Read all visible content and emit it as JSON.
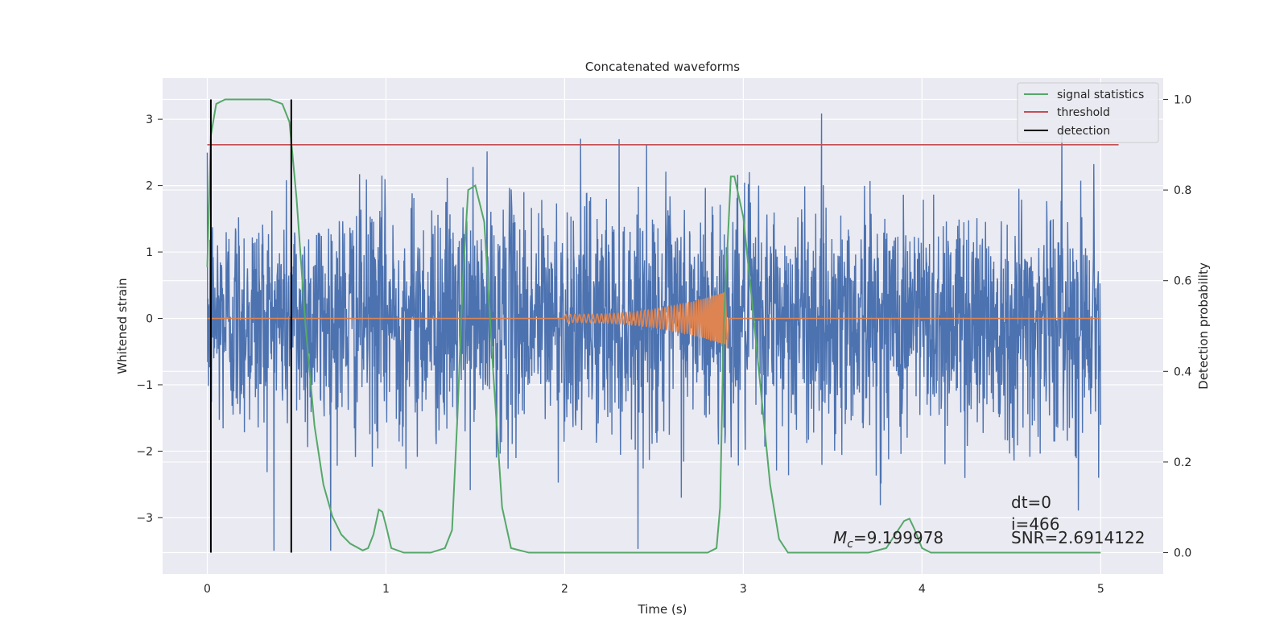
{
  "chart_data": {
    "type": "line",
    "title": "Concatenated waveforms",
    "xlabel": "Time (s)",
    "ylabel": "Whitened strain",
    "y2label": "Detection probability",
    "xlim": [
      -0.25,
      5.35
    ],
    "ylim": [
      -3.85,
      3.62
    ],
    "y2lim": [
      -0.047,
      1.047
    ],
    "xticks": [
      0,
      1,
      2,
      3,
      4,
      5
    ],
    "xtick_labels": [
      "0",
      "1",
      "2",
      "3",
      "4",
      "5"
    ],
    "yticks": [
      -3,
      -2,
      -1,
      0,
      1,
      2,
      3
    ],
    "ytick_labels": [
      "−3",
      "−2",
      "−1",
      "0",
      "1",
      "2",
      "3"
    ],
    "y2ticks": [
      0.0,
      0.2,
      0.4,
      0.6,
      0.8,
      1.0
    ],
    "y2tick_labels": [
      "0.0",
      "0.2",
      "0.4",
      "0.6",
      "0.8",
      "1.0"
    ],
    "grid": true,
    "legend_position": "top-right",
    "legend": [
      "signal statistics",
      "threshold",
      "detection"
    ],
    "series": [
      {
        "name": "whitened noise",
        "axis": "left",
        "color": "#4c72b0",
        "kind": "noise",
        "x_range": [
          0,
          5
        ],
        "typical_amplitude_range": [
          -2.0,
          2.0
        ],
        "peak_max": 3.3,
        "peak_min": -3.5
      },
      {
        "name": "injected waveform",
        "axis": "left",
        "color": "#dd8452",
        "kind": "chirp",
        "x_range": [
          0,
          5
        ],
        "chirp_start": 2.0,
        "chirp_end": 2.9,
        "amplitude_start": 0.06,
        "amplitude_end": 0.4
      },
      {
        "name": "signal statistics",
        "axis": "right",
        "color": "#55a868",
        "points": [
          [
            0.0,
            0.63
          ],
          [
            0.02,
            0.92
          ],
          [
            0.05,
            0.99
          ],
          [
            0.1,
            1.0
          ],
          [
            0.35,
            1.0
          ],
          [
            0.42,
            0.99
          ],
          [
            0.46,
            0.95
          ],
          [
            0.5,
            0.78
          ],
          [
            0.55,
            0.5
          ],
          [
            0.6,
            0.28
          ],
          [
            0.65,
            0.15
          ],
          [
            0.7,
            0.08
          ],
          [
            0.75,
            0.04
          ],
          [
            0.8,
            0.02
          ],
          [
            0.87,
            0.005
          ],
          [
            0.9,
            0.01
          ],
          [
            0.93,
            0.04
          ],
          [
            0.96,
            0.095
          ],
          [
            0.98,
            0.09
          ],
          [
            1.0,
            0.06
          ],
          [
            1.03,
            0.01
          ],
          [
            1.1,
            0.0
          ],
          [
            1.25,
            0.0
          ],
          [
            1.33,
            0.01
          ],
          [
            1.37,
            0.05
          ],
          [
            1.4,
            0.3
          ],
          [
            1.43,
            0.6
          ],
          [
            1.46,
            0.8
          ],
          [
            1.5,
            0.81
          ],
          [
            1.55,
            0.73
          ],
          [
            1.6,
            0.4
          ],
          [
            1.65,
            0.1
          ],
          [
            1.7,
            0.01
          ],
          [
            1.8,
            0.0
          ],
          [
            2.8,
            0.0
          ],
          [
            2.85,
            0.01
          ],
          [
            2.87,
            0.1
          ],
          [
            2.89,
            0.5
          ],
          [
            2.93,
            0.83
          ],
          [
            2.95,
            0.83
          ],
          [
            3.0,
            0.74
          ],
          [
            3.05,
            0.55
          ],
          [
            3.1,
            0.35
          ],
          [
            3.15,
            0.15
          ],
          [
            3.2,
            0.03
          ],
          [
            3.25,
            0.0
          ],
          [
            3.7,
            0.0
          ],
          [
            3.8,
            0.01
          ],
          [
            3.85,
            0.04
          ],
          [
            3.9,
            0.07
          ],
          [
            3.93,
            0.075
          ],
          [
            3.96,
            0.05
          ],
          [
            4.0,
            0.01
          ],
          [
            4.05,
            0.0
          ],
          [
            5.0,
            0.0
          ]
        ]
      },
      {
        "name": "threshold",
        "axis": "right",
        "color": "#c44e52",
        "x": [
          0,
          5.1
        ],
        "y": 0.9
      },
      {
        "name": "detection",
        "axis": "right",
        "color": "#000000",
        "vlines": [
          0.02,
          0.47
        ],
        "y_span": [
          0.0,
          1.0
        ]
      }
    ],
    "annotations": {
      "mc_symbol": "M",
      "mc_subscript": "c",
      "mc_value": "=9.199978",
      "dt": "dt=0",
      "index": "i=466",
      "snr": "SNR=2.6914122"
    }
  }
}
